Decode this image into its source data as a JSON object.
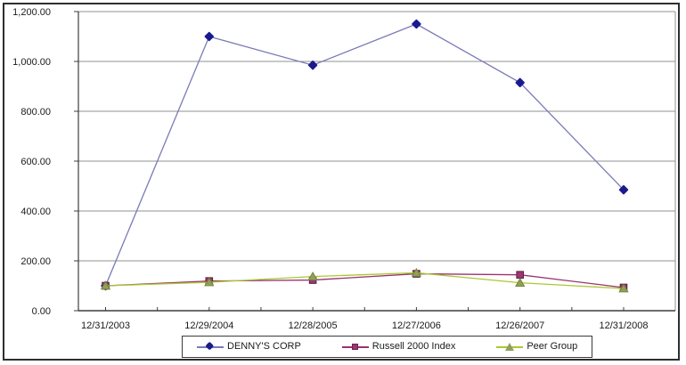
{
  "window": {
    "background_color": "#ffffff",
    "frame_border_color": "#2e2e2e"
  },
  "chart_data": {
    "type": "line",
    "title": "",
    "xlabel": "",
    "ylabel": "",
    "x_labels": [
      "12/31/2003",
      "12/29/2004",
      "12/28/2005",
      "12/27/2006",
      "12/26/2007",
      "12/31/2008"
    ],
    "y_tick_labels": [
      "1,200.00",
      "1,000.00",
      "800.00",
      "600.00",
      "400.00",
      "200.00",
      "0.00"
    ],
    "ylim": [
      0,
      1200
    ],
    "y_step": 200,
    "grid": "horizontal",
    "gridline_color": "#909090",
    "axis_color": "#3c3c3c",
    "tick_label_color": "#1a1a1a",
    "legend_position": "bottom-center",
    "series": [
      {
        "name": "DENNY'S CORP",
        "marker": "diamond",
        "line_color": "#7a7ab8",
        "marker_color": "#1a1a8f",
        "marker_stroke": "#13136b",
        "values": [
          100,
          1100,
          985,
          1150,
          915,
          485
        ]
      },
      {
        "name": "Russell 2000 Index",
        "marker": "square",
        "line_color": "#993370",
        "marker_color": "#9e3573",
        "marker_stroke": "#5a1f3f",
        "values": [
          100,
          119,
          123,
          148,
          144,
          93
        ]
      },
      {
        "name": "Peer Group",
        "marker": "triangle",
        "line_color": "#abc832",
        "marker_color": "#8fa05c",
        "marker_stroke": "#74863a",
        "values": [
          100,
          114,
          137,
          152,
          112,
          89
        ]
      }
    ]
  }
}
